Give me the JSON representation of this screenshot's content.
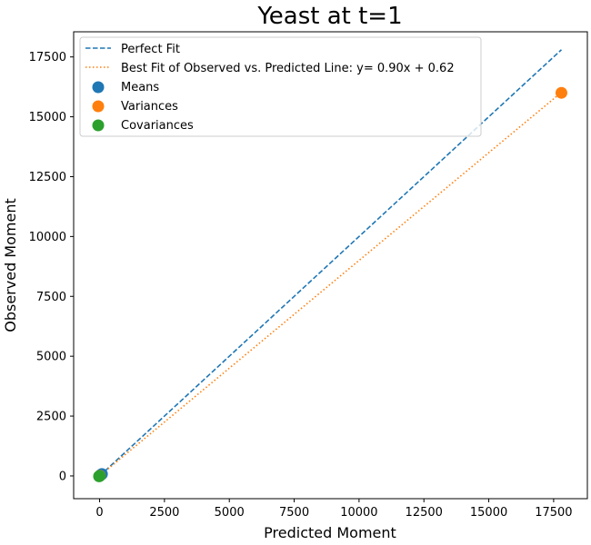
{
  "chart_data": {
    "type": "scatter",
    "title": "Yeast at t=1",
    "xlabel": "Predicted Moment",
    "ylabel": "Observed Moment",
    "xlim": [
      -1000,
      18800
    ],
    "ylim": [
      -950,
      18550
    ],
    "xticks": [
      0,
      2500,
      5000,
      7500,
      10000,
      12500,
      15000,
      17500
    ],
    "yticks": [
      0,
      2500,
      5000,
      7500,
      10000,
      12500,
      15000,
      17500
    ],
    "grid": false,
    "legend_position": "top-left",
    "lines": [
      {
        "name": "Perfect Fit",
        "style": "dashed",
        "color": "#1f77b4",
        "x": [
          0,
          17800
        ],
        "y": [
          0,
          17800
        ]
      },
      {
        "name": "Best Fit of Observed vs. Predicted Line: y= 0.90x + 0.62",
        "style": "dotted",
        "color": "#ff7f0e",
        "x": [
          0,
          17800
        ],
        "y": [
          0.62,
          16020.62
        ]
      }
    ],
    "series": [
      {
        "name": "Means",
        "color": "#1f77b4",
        "points": [
          [
            30,
            30
          ],
          [
            60,
            55
          ],
          [
            90,
            80
          ]
        ]
      },
      {
        "name": "Variances",
        "color": "#ff7f0e",
        "points": [
          [
            17800,
            16000
          ],
          [
            10,
            8
          ]
        ]
      },
      {
        "name": "Covariances",
        "color": "#2ca02c",
        "points": [
          [
            -20,
            -15
          ],
          [
            0,
            0
          ],
          [
            5,
            -5
          ]
        ]
      }
    ]
  }
}
